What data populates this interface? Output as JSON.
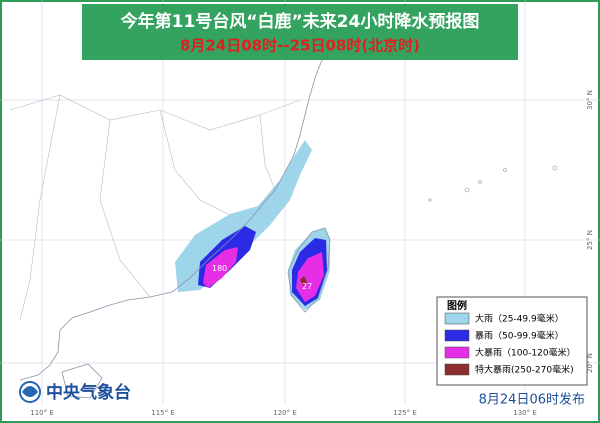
{
  "header": {
    "title": "今年第11号台风“白鹿”未来24小时降水预报图",
    "subtitle": "8月24日08时--25日08时(北京时)"
  },
  "legend": {
    "title": "图例",
    "items": [
      {
        "label": "大雨（25-49.9毫米）",
        "color": "#9fd5ea"
      },
      {
        "label": "暴雨（50-99.9毫米）",
        "color": "#2b2be6"
      },
      {
        "label": "大暴雨（100-120毫米）",
        "color": "#e62ee6"
      },
      {
        "label": "特大暴雨(250-270毫米)",
        "color": "#8c2d2d"
      }
    ]
  },
  "annotations": [
    "180",
    "27"
  ],
  "axes": {
    "longitude": [
      "110° E",
      "115° E",
      "120° E",
      "125° E",
      "130° E"
    ],
    "latitude": [
      "30° N",
      "25° N",
      "20° N"
    ]
  },
  "footer": {
    "agency": "中央气象台",
    "issued": "8月24日06时发布"
  }
}
